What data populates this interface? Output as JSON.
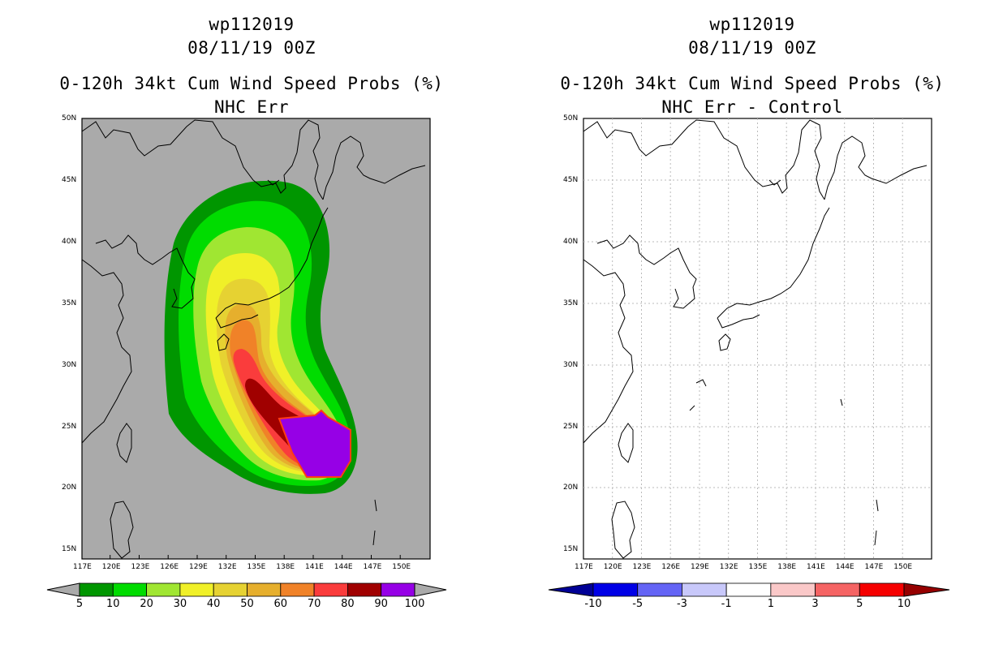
{
  "left": {
    "title_id": "wp112019",
    "title_time": "08/11/19 00Z",
    "title_product": "0-120h 34kt Cum Wind Speed Probs (%)",
    "title_sub": "NHC Err",
    "colorbar_labels": [
      "5",
      "10",
      "20",
      "30",
      "40",
      "50",
      "60",
      "70",
      "80",
      "90",
      "100"
    ],
    "colorbar_colors": [
      "#009600",
      "#00dc00",
      "#a0e632",
      "#f0f028",
      "#e6d232",
      "#e6af2d",
      "#f08228",
      "#fa3c3c",
      "#a00000",
      "#9600e6"
    ]
  },
  "right": {
    "title_id": "wp112019",
    "title_time": "08/11/19 00Z",
    "title_product": "0-120h 34kt Cum Wind Speed Probs (%)",
    "title_sub": "NHC Err - Control",
    "colorbar_labels": [
      "-10",
      "-5",
      "-3",
      "-1",
      "1",
      "3",
      "5",
      "10"
    ],
    "colorbar_colors": [
      "#0000e6",
      "#6464f5",
      "#c8c8fa",
      "#ffffff",
      "#fac8c8",
      "#f56464",
      "#f50000"
    ]
  },
  "axes": {
    "lon_labels": [
      "117E",
      "120E",
      "123E",
      "126E",
      "129E",
      "132E",
      "135E",
      "138E",
      "141E",
      "144E",
      "147E",
      "150E"
    ],
    "lat_labels": [
      "50N",
      "45N",
      "40N",
      "35N",
      "30N",
      "25N",
      "20N",
      "15N"
    ]
  },
  "map_colors": {
    "ocean_left": "#aaaaaa",
    "ocean_right": "#ffffff"
  }
}
